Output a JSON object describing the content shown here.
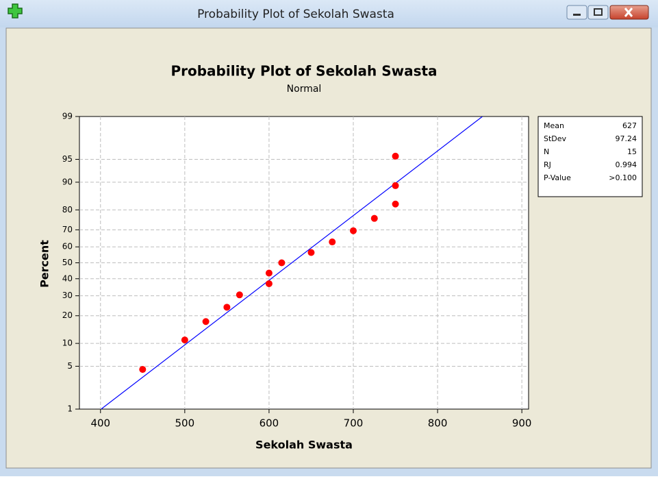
{
  "window": {
    "title": "Probability Plot of Sekolah Swasta"
  },
  "chart_data": {
    "type": "probability",
    "title": "Probability Plot of Sekolah Swasta",
    "subtitle": "Normal",
    "xlabel": "Sekolah Swasta",
    "ylabel": "Percent",
    "yscale": "normal-probability",
    "x": [
      450,
      500,
      525,
      550,
      565,
      600,
      600,
      615,
      650,
      675,
      700,
      725,
      750,
      750,
      750
    ],
    "values": [
      4.5,
      11.0,
      17.5,
      24.0,
      30.5,
      37.0,
      43.5,
      50.0,
      56.5,
      63.0,
      69.5,
      76.0,
      82.5,
      89.0,
      95.5
    ],
    "color": "#ff0000",
    "line_color": "#0000ff",
    "xlim": [
      375,
      908
    ],
    "xticks": [
      400,
      500,
      600,
      700,
      800,
      900
    ],
    "ylim": [
      1,
      99
    ],
    "yticks": [
      1,
      5,
      10,
      20,
      30,
      40,
      50,
      60,
      70,
      80,
      90,
      95,
      99
    ],
    "grid": true,
    "stats": [
      {
        "label": "Mean",
        "value": 627
      },
      {
        "label": "StDev",
        "value": 97.24
      },
      {
        "label": "N",
        "value": 15
      },
      {
        "label": "RJ",
        "value": 0.994
      },
      {
        "label": "P-Value",
        "value": ">0.100"
      }
    ]
  }
}
